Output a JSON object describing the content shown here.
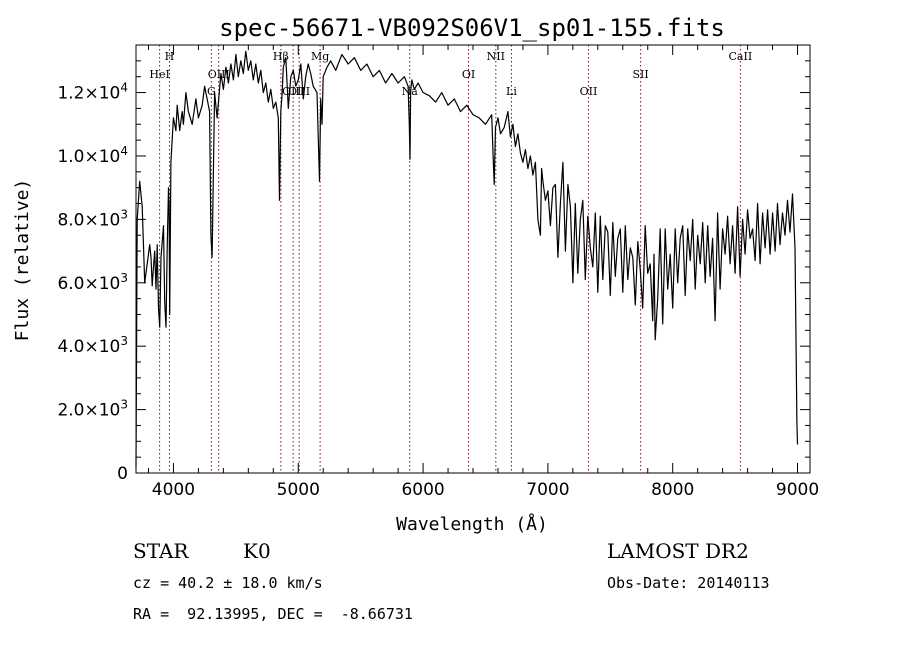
{
  "chart_data": {
    "type": "line",
    "title": "spec-56671-VB092S06V1_sp01-155.fits",
    "xlabel": "Wavelength (Å)",
    "ylabel": "Flux (relative)",
    "xlim": [
      3700,
      9100
    ],
    "ylim": [
      0,
      13500
    ],
    "x_ticks": [
      4000,
      5000,
      6000,
      7000,
      8000,
      9000
    ],
    "x_tick_labels": [
      "4000",
      "5000",
      "6000",
      "7000",
      "8000",
      "9000"
    ],
    "y_ticks": [
      0,
      2000,
      4000,
      6000,
      8000,
      10000,
      12000
    ],
    "y_tick_labels": [
      {
        "mant": "0",
        "exp": ""
      },
      {
        "mant": "2.0×10",
        "exp": "3"
      },
      {
        "mant": "4.0×10",
        "exp": "3"
      },
      {
        "mant": "6.0×10",
        "exp": "3"
      },
      {
        "mant": "8.0×10",
        "exp": "3"
      },
      {
        "mant": "1.0×10",
        "exp": "4"
      },
      {
        "mant": "1.2×10",
        "exp": "4"
      }
    ],
    "series": [
      {
        "x": [
          3700,
          3710,
          3730,
          3750,
          3770,
          3790,
          3810,
          3820,
          3830,
          3840,
          3850,
          3860,
          3870,
          3880,
          3890,
          3900,
          3920,
          3930,
          3940,
          3950,
          3960,
          3965,
          3970,
          3980,
          4000,
          4020,
          4030,
          4050,
          4070,
          4080,
          4100,
          4120,
          4150,
          4180,
          4200,
          4230,
          4250,
          4270,
          4290,
          4300,
          4310,
          4330,
          4350,
          4380,
          4400,
          4420,
          4440,
          4460,
          4480,
          4500,
          4520,
          4540,
          4560,
          4580,
          4600,
          4620,
          4640,
          4660,
          4680,
          4700,
          4720,
          4740,
          4760,
          4780,
          4800,
          4820,
          4840,
          4850,
          4860,
          4870,
          4880,
          4900,
          4920,
          4940,
          4960,
          4980,
          5000,
          5020,
          5040,
          5060,
          5080,
          5100,
          5120,
          5150,
          5170,
          5180,
          5190,
          5200,
          5230,
          5260,
          5300,
          5350,
          5400,
          5450,
          5500,
          5550,
          5600,
          5650,
          5700,
          5750,
          5800,
          5850,
          5880,
          5890,
          5895,
          5900,
          5910,
          5930,
          5960,
          6000,
          6050,
          6100,
          6150,
          6200,
          6250,
          6300,
          6350,
          6400,
          6450,
          6500,
          6550,
          6560,
          6570,
          6580,
          6600,
          6620,
          6650,
          6680,
          6700,
          6720,
          6740,
          6760,
          6780,
          6800,
          6820,
          6840,
          6860,
          6880,
          6900,
          6920,
          6940,
          6950,
          6960,
          6980,
          7000,
          7020,
          7040,
          7060,
          7080,
          7100,
          7120,
          7140,
          7160,
          7180,
          7200,
          7220,
          7240,
          7260,
          7280,
          7300,
          7320,
          7340,
          7360,
          7380,
          7400,
          7420,
          7440,
          7460,
          7480,
          7500,
          7520,
          7540,
          7560,
          7580,
          7600,
          7620,
          7640,
          7660,
          7680,
          7700,
          7720,
          7740,
          7760,
          7780,
          7800,
          7820,
          7840,
          7850,
          7860,
          7880,
          7900,
          7920,
          7940,
          7960,
          7980,
          8000,
          8020,
          8040,
          8060,
          8080,
          8100,
          8120,
          8140,
          8160,
          8180,
          8200,
          8220,
          8240,
          8260,
          8280,
          8300,
          8320,
          8340,
          8360,
          8380,
          8400,
          8420,
          8440,
          8460,
          8480,
          8500,
          8520,
          8540,
          8560,
          8580,
          8600,
          8620,
          8640,
          8660,
          8680,
          8700,
          8720,
          8740,
          8760,
          8780,
          8800,
          8820,
          8840,
          8860,
          8880,
          8900,
          8920,
          8940,
          8960,
          8980,
          8995,
          9000
        ],
        "y": [
          200,
          8000,
          9200,
          8400,
          6000,
          6600,
          7200,
          6800,
          5900,
          6500,
          7000,
          5800,
          7200,
          5200,
          4600,
          6800,
          7800,
          5400,
          4600,
          7100,
          9000,
          8500,
          5000,
          9800,
          11200,
          10800,
          11600,
          10800,
          11400,
          11000,
          12000,
          11400,
          11000,
          11800,
          11200,
          11600,
          12200,
          11800,
          11400,
          7500,
          6800,
          12000,
          11200,
          12600,
          12100,
          12800,
          12300,
          12900,
          12400,
          13200,
          12500,
          13000,
          12600,
          13300,
          12700,
          13000,
          12400,
          12900,
          12300,
          12700,
          12000,
          12300,
          11700,
          12100,
          11500,
          11700,
          11200,
          8600,
          11400,
          11900,
          12800,
          13100,
          11500,
          12500,
          12700,
          12200,
          12400,
          12900,
          11800,
          12500,
          12900,
          12600,
          12200,
          12000,
          9200,
          11800,
          11000,
          12500,
          12800,
          13000,
          12700,
          13200,
          12900,
          13100,
          12700,
          12900,
          12500,
          12700,
          12300,
          12600,
          12300,
          12500,
          12200,
          11000,
          9900,
          12000,
          12400,
          12100,
          12300,
          12000,
          11900,
          11700,
          12000,
          11600,
          11800,
          11400,
          11600,
          11300,
          11200,
          11000,
          11300,
          10100,
          9100,
          10900,
          11200,
          10700,
          10900,
          11400,
          10600,
          11000,
          10300,
          10700,
          10100,
          9800,
          10200,
          9600,
          10000,
          9400,
          9800,
          8000,
          7500,
          9600,
          9200,
          8600,
          8900,
          7800,
          9000,
          9100,
          6800,
          8500,
          9800,
          7000,
          9100,
          8400,
          6000,
          8500,
          6300,
          8000,
          8600,
          6100,
          8100,
          7100,
          6500,
          8200,
          5700,
          8100,
          6100,
          7800,
          7600,
          5600,
          7900,
          6200,
          7400,
          7700,
          5700,
          7800,
          6100,
          7100,
          6800,
          5300,
          7300,
          6400,
          5200,
          7800,
          6300,
          6600,
          4800,
          6900,
          4200,
          5500,
          7700,
          4700,
          7700,
          5800,
          6900,
          5200,
          7700,
          6000,
          7400,
          7800,
          5600,
          7700,
          6700,
          8000,
          5800,
          7500,
          6600,
          7900,
          6000,
          7800,
          6200,
          7400,
          4800,
          8200,
          5800,
          7700,
          6900,
          8100,
          6600,
          7800,
          6300,
          8400,
          6200,
          8000,
          6900,
          8300,
          7400,
          7700,
          6700,
          8500,
          6600,
          8200,
          7100,
          8300,
          6900,
          8200,
          7000,
          8500,
          7200,
          8200,
          7500,
          8600,
          7600,
          8800,
          7100,
          1600,
          900
        ]
      }
    ],
    "lines": [
      {
        "label": "HeI",
        "x": 3889,
        "row": 1
      },
      {
        "label": "H",
        "x": 3968,
        "row": 0
      },
      {
        "label": "OIII",
        "x": 4363,
        "row": 1
      },
      {
        "label": "G",
        "x": 4304,
        "row": 2
      },
      {
        "label": "Hβ",
        "x": 4861,
        "row": 0
      },
      {
        "label": "OIII",
        "x": 4959,
        "row": 2
      },
      {
        "label": "OIII",
        "x": 5007,
        "row": 2
      },
      {
        "label": "Mg",
        "x": 5175,
        "row": 0
      },
      {
        "label": "Na",
        "x": 5893,
        "row": 2
      },
      {
        "label": "OI",
        "x": 6364,
        "row": 1
      },
      {
        "label": "NII",
        "x": 6583,
        "row": 0
      },
      {
        "label": "Li",
        "x": 6708,
        "row": 2
      },
      {
        "label": "OII",
        "x": 7325,
        "row": 2
      },
      {
        "label": "SII",
        "x": 7743,
        "row": 1
      },
      {
        "label": "CaII",
        "x": 8542,
        "row": 0
      }
    ],
    "grid": false,
    "legend": "none"
  },
  "info": {
    "type_label": "STAR",
    "subclass": "K0",
    "survey": "LAMOST DR2",
    "cz": "cz = 40.2 ± 18.0 km/s",
    "obs_date": "Obs-Date: 20140113",
    "radec": "RA =  92.13995, DEC =  -8.66731"
  },
  "colors": {
    "spectrum": "#000000",
    "line_marker": "#a00000",
    "line_label": "#000000"
  }
}
